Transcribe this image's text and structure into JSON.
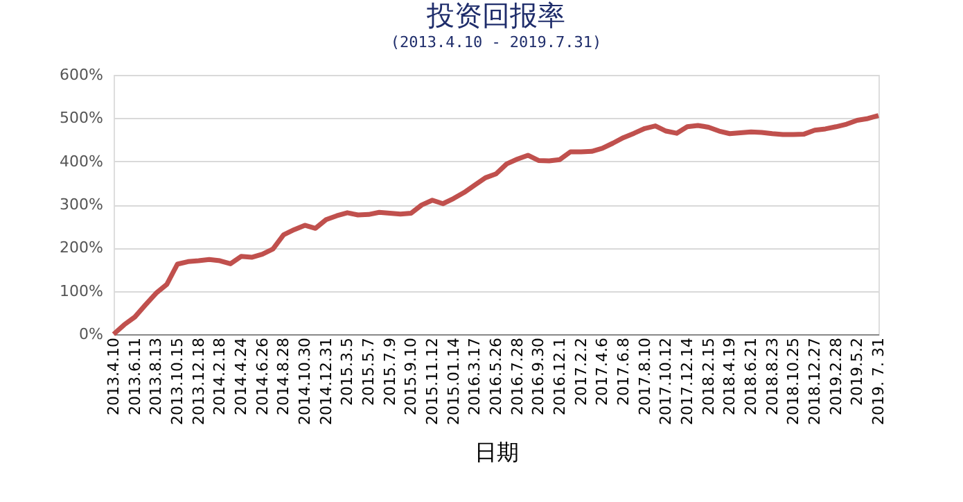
{
  "chart_data": {
    "type": "line",
    "title": "投资回报率",
    "subtitle": "(2013.4.10 - 2019.7.31)",
    "xlabel": "日期",
    "categories": [
      "2013.4.10",
      null,
      "2013.6.11",
      null,
      "2013.8.13",
      null,
      "2013.10.15",
      null,
      "2013.12.18",
      null,
      "2014.2.18",
      null,
      "2014.4.24",
      null,
      "2014.6.26",
      null,
      "2014.8.28",
      null,
      "2014.10.30",
      null,
      "2014.12.31",
      null,
      "2015.3.5",
      null,
      "2015.5.7",
      null,
      "2015.7.9",
      null,
      "2015.9.10",
      null,
      "2015.11.12",
      null,
      "2015.01.14",
      null,
      "2016.3.17",
      null,
      "2016.5.26",
      null,
      "2016.7.28",
      null,
      "2016.9.30",
      null,
      "2016.12.1",
      null,
      "2017.2.2",
      null,
      "2017.4.6",
      null,
      "2017.6.8",
      null,
      "2017.8.10",
      null,
      "2017.10.12",
      null,
      "2017.12.14",
      null,
      "2018.2.15",
      null,
      "2018.4.19",
      null,
      "2018.6.21",
      null,
      "2018.8.23",
      null,
      "2018.10.25",
      null,
      "2018.12.27",
      null,
      "2019.2.28",
      null,
      "2019.5.2",
      null,
      "2019. 7. 31"
    ],
    "series": [
      {
        "color": "#c0504d",
        "values": [
          0,
          22,
          40,
          68,
          95,
          115,
          162,
          168,
          170,
          173,
          170,
          163,
          180,
          178,
          185,
          197,
          230,
          242,
          252,
          245,
          265,
          274,
          281,
          276,
          277,
          282,
          280,
          278,
          280,
          299,
          310,
          302,
          314,
          328,
          345,
          362,
          371,
          394,
          405,
          414,
          402,
          401,
          404,
          422,
          422,
          423,
          430,
          442,
          455,
          465,
          476,
          482,
          470,
          465,
          480,
          483,
          479,
          470,
          464,
          466,
          468,
          467,
          464,
          462,
          462,
          463,
          472,
          475,
          480,
          486,
          495,
          499,
          506
        ]
      }
    ],
    "ylim": [
      0,
      600
    ],
    "yticks": [
      {
        "value": 0,
        "label": "0%"
      },
      {
        "value": 100,
        "label": "100%"
      },
      {
        "value": 200,
        "label": "200%"
      },
      {
        "value": 300,
        "label": "300%"
      },
      {
        "value": 400,
        "label": "400%"
      },
      {
        "value": 500,
        "label": "500%"
      },
      {
        "value": 600,
        "label": "600%"
      }
    ],
    "grid": "y",
    "marker": "none",
    "line_style": "solid"
  }
}
